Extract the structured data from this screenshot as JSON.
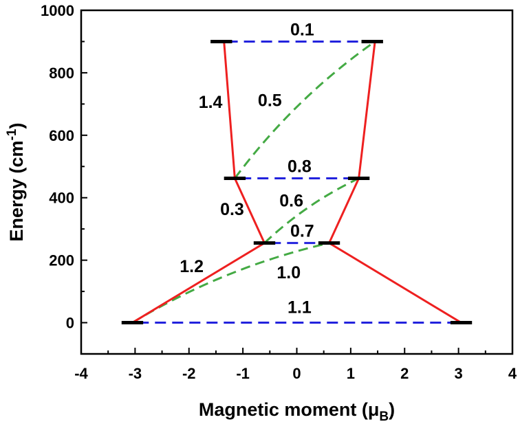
{
  "chart_data": {
    "type": "line",
    "xlabel": "Magnetic moment (μ",
    "xlabel_sub": "B",
    "xlabel_end": ")",
    "ylabel": "Energy (cm",
    "ylabel_sup": "-1",
    "ylabel_end": ")",
    "xlim": [
      -4,
      4
    ],
    "ylim": [
      -100,
      1000
    ],
    "xticks": [
      -4,
      -3,
      -2,
      -1,
      0,
      1,
      2,
      3,
      4
    ],
    "yticks": [
      0,
      200,
      400,
      600,
      800,
      1000
    ],
    "grid": false,
    "levels": [
      {
        "x": -3.05,
        "y": 0
      },
      {
        "x": 3.05,
        "y": 0
      },
      {
        "x": -0.6,
        "y": 255
      },
      {
        "x": 0.6,
        "y": 255
      },
      {
        "x": -1.15,
        "y": 462
      },
      {
        "x": 1.15,
        "y": 462
      },
      {
        "x": -1.4,
        "y": 900
      },
      {
        "x": 1.4,
        "y": 900
      }
    ],
    "red_paths": [
      [
        [
          -3.05,
          0
        ],
        [
          -0.6,
          255
        ],
        [
          -1.15,
          462
        ],
        [
          -1.35,
          900
        ]
      ],
      [
        [
          3.05,
          0
        ],
        [
          0.6,
          255
        ],
        [
          1.15,
          462
        ],
        [
          1.45,
          900
        ]
      ]
    ],
    "blue_links": [
      [
        [
          -2.95,
          0
        ],
        [
          2.95,
          0
        ]
      ],
      [
        [
          -0.5,
          255
        ],
        [
          0.5,
          255
        ]
      ],
      [
        [
          -1.05,
          462
        ],
        [
          1.05,
          462
        ]
      ],
      [
        [
          -1.3,
          900
        ],
        [
          1.3,
          900
        ]
      ]
    ],
    "green_links": [
      [
        [
          -3.05,
          0
        ],
        [
          0.6,
          255
        ]
      ],
      [
        [
          -0.6,
          255
        ],
        [
          1.15,
          462
        ]
      ],
      [
        [
          -1.15,
          462
        ],
        [
          1.45,
          900
        ]
      ]
    ],
    "annotations": [
      {
        "text": "0.1",
        "x": 0.1,
        "y": 920
      },
      {
        "text": "1.4",
        "x": -1.6,
        "y": 688
      },
      {
        "text": "0.5",
        "x": -0.5,
        "y": 693
      },
      {
        "text": "0.8",
        "x": 0.05,
        "y": 482
      },
      {
        "text": "0.3",
        "x": -1.2,
        "y": 344
      },
      {
        "text": "0.6",
        "x": -0.1,
        "y": 372
      },
      {
        "text": "0.7",
        "x": 0.1,
        "y": 275
      },
      {
        "text": "1.2",
        "x": -1.95,
        "y": 162
      },
      {
        "text": "1.0",
        "x": -0.15,
        "y": 142
      },
      {
        "text": "1.1",
        "x": 0.05,
        "y": 31
      }
    ],
    "colors": {
      "level": "#000000",
      "red": "#ee2020",
      "blue": "#2222dd",
      "green": "#44aa44"
    }
  }
}
